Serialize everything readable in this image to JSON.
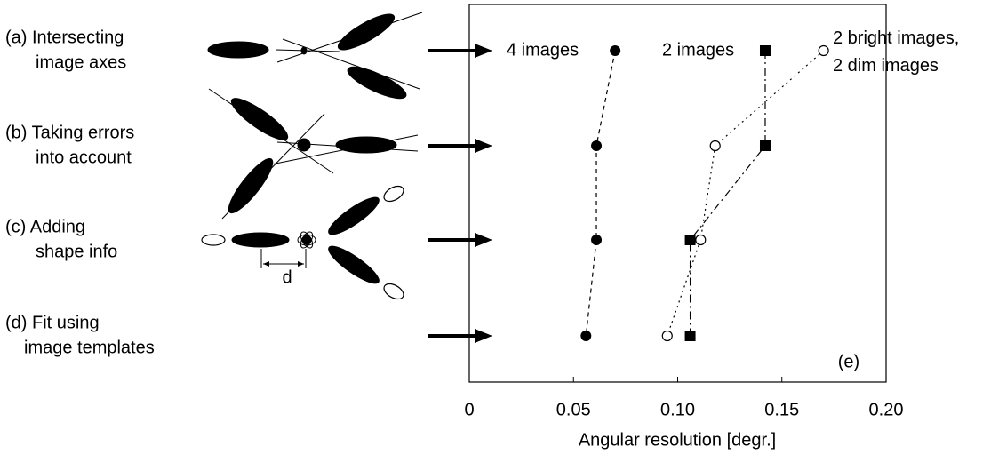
{
  "chart_data": {
    "type": "line",
    "orientation": "horizontal",
    "xlabel": "Angular resolution [degr.]",
    "xlim": [
      0,
      0.2
    ],
    "xticks": [
      0,
      {
        "value": 0.05,
        "label": "0.05"
      },
      {
        "value": 0.1,
        "label": "0.10"
      },
      {
        "value": 0.15,
        "label": "0.15"
      },
      {
        "value": 0.2,
        "label": "0.20"
      }
    ],
    "categories": [
      [
        "(a) Intersecting",
        "image axes"
      ],
      [
        "(b) Taking errors",
        "into account"
      ],
      [
        "(c) Adding",
        "shape info"
      ],
      [
        "(d) Fit using",
        "image templates"
      ]
    ],
    "series": [
      {
        "name": "4 images",
        "color": "#000000",
        "marker": "filled-circle",
        "dash": "dashed",
        "values": [
          0.07,
          0.061,
          0.061,
          0.056
        ]
      },
      {
        "name": "2 images",
        "color": "#000000",
        "marker": "filled-square",
        "dash": "dash-dot",
        "values": [
          0.142,
          0.142,
          0.106,
          0.106
        ]
      },
      {
        "name": "2 bright images, 2 dim images",
        "color": "#000000",
        "marker": "open-circle",
        "dash": "dotted",
        "values": [
          0.17,
          0.118,
          0.111,
          0.095
        ]
      }
    ],
    "annotation": "(e)",
    "diagram_label": "d"
  }
}
